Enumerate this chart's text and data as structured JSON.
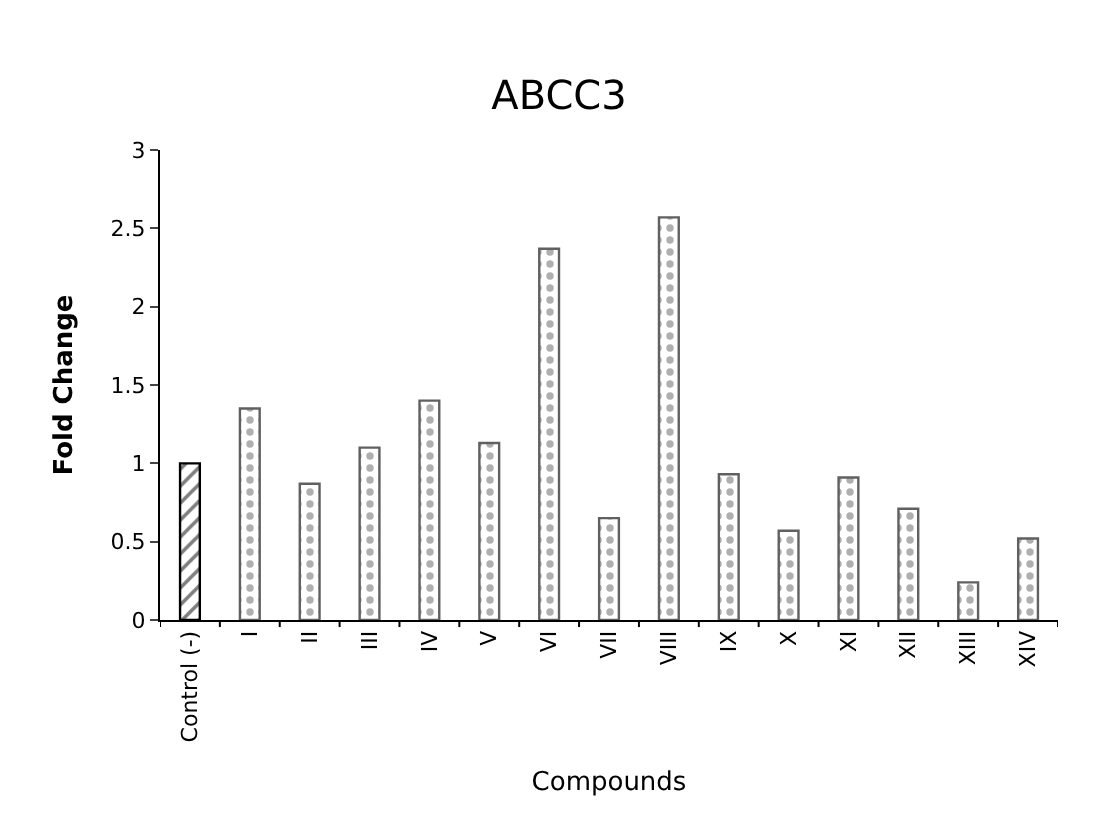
{
  "chart_data": {
    "type": "bar",
    "title": "ABCC3",
    "xlabel": "Compounds",
    "ylabel": "Fold Change",
    "categories": [
      "Control (-)",
      "I",
      "II",
      "III",
      "IV",
      "V",
      "VI",
      "VII",
      "VIII",
      "IX",
      "X",
      "XI",
      "XII",
      "XIII",
      "XIV"
    ],
    "values": [
      1,
      1.35,
      0.87,
      1.1,
      1.4,
      1.13,
      2.37,
      0.65,
      2.57,
      0.93,
      0.57,
      0.91,
      0.71,
      0.24,
      0.52
    ],
    "colors": [
      "#000000",
      "#606060",
      "#606060",
      "#606060",
      "#606060",
      "#606060",
      "#606060",
      "#606060",
      "#606060",
      "#606060",
      "#606060",
      "#606060",
      "#606060",
      "#606060",
      "#606060"
    ],
    "ylim": [
      0,
      3
    ],
    "yticks": [
      0,
      0.5,
      1,
      1.5,
      2,
      2.5,
      3
    ]
  }
}
